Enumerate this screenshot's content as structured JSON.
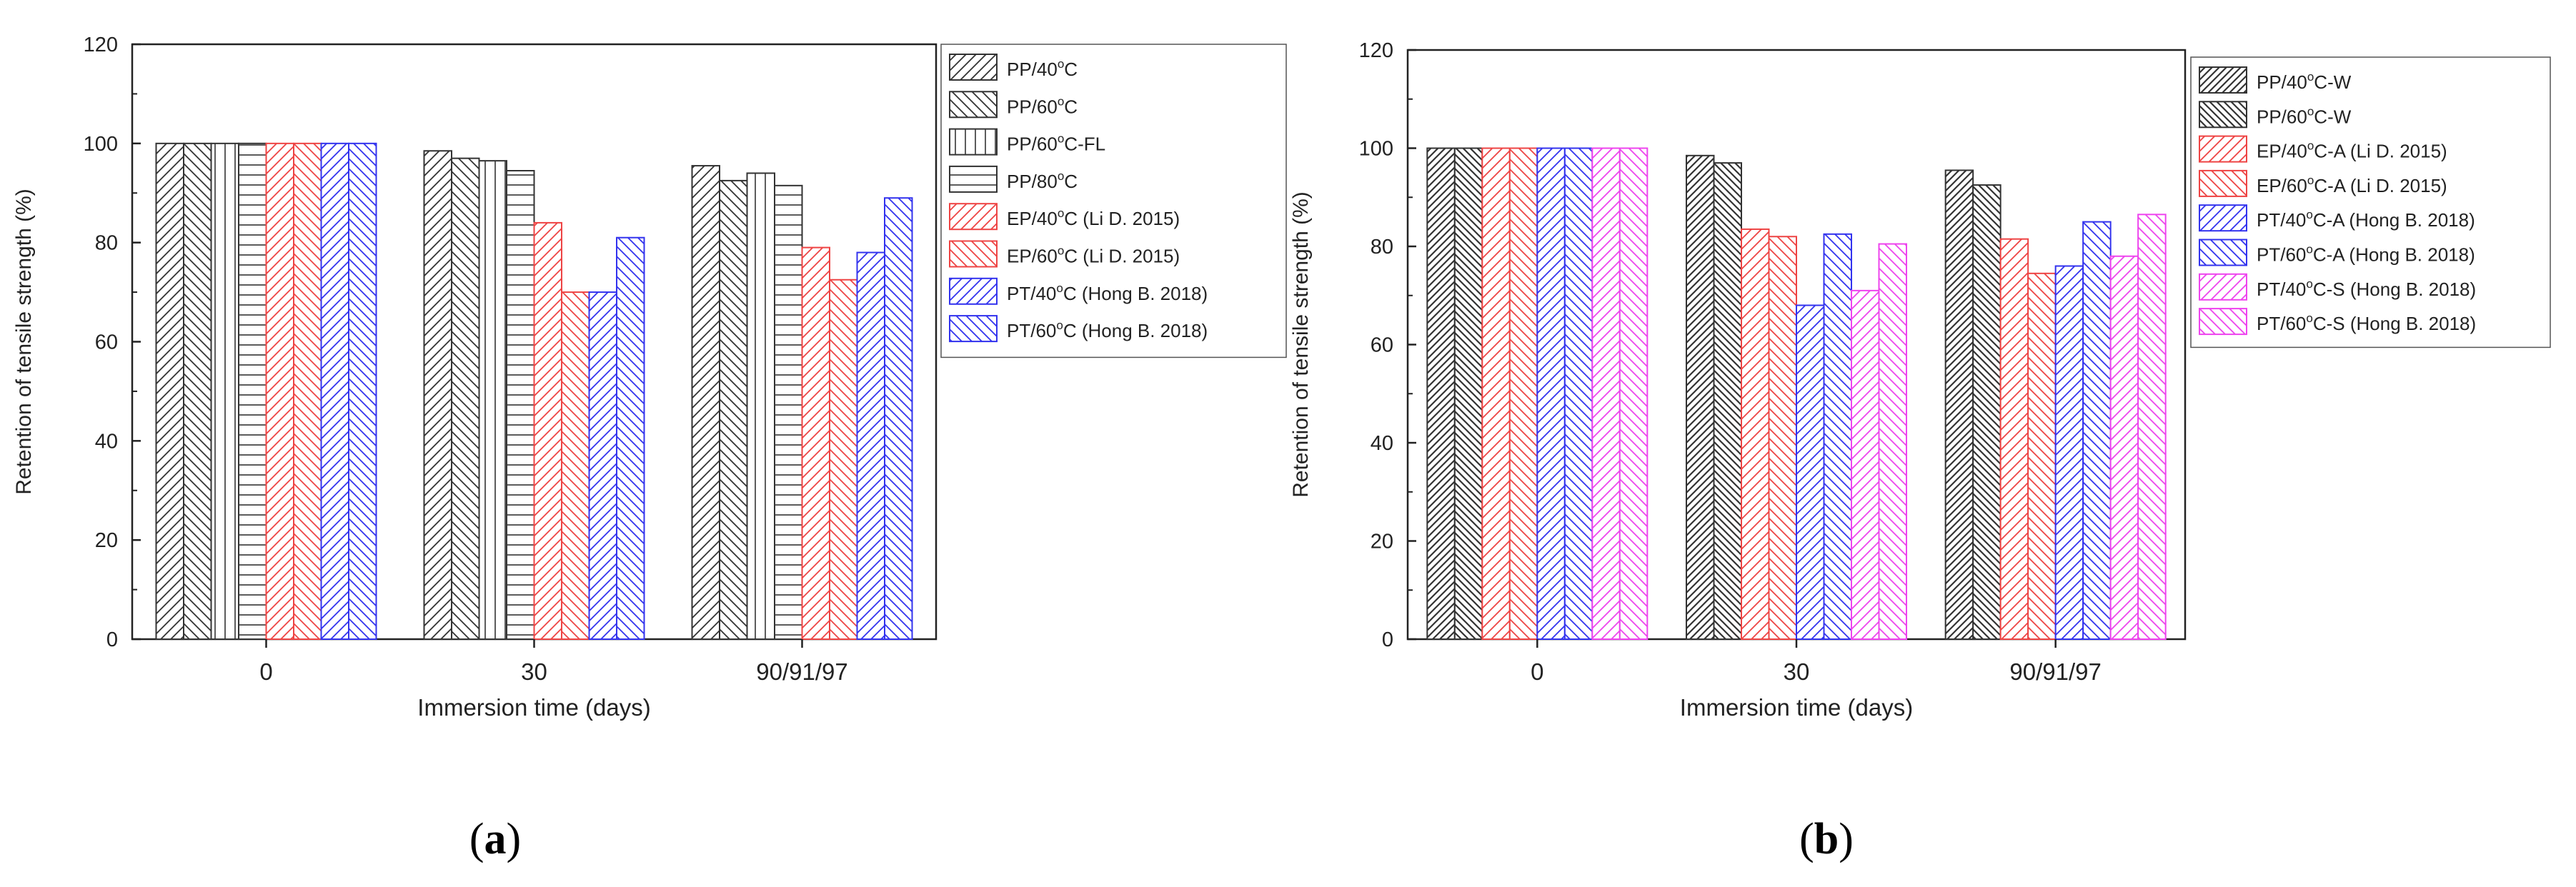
{
  "panels": [
    {
      "label": "(a)",
      "label_letter": "a",
      "chart_data": {
        "type": "bar",
        "title": "",
        "xlabel": "Immersion time (days)",
        "ylabel": "Retention of tensile strength (%)",
        "ylim": [
          0,
          120
        ],
        "yticks": [
          "0",
          "20",
          "40",
          "60",
          "80",
          "100",
          "120"
        ],
        "categories": [
          "0",
          "30",
          "90/91/97"
        ],
        "legend_position": "right-outside",
        "series": [
          {
            "name": "PP/40°C",
            "label_base": "PP/40",
            "label_suffix": "C",
            "color": "#333333",
            "pattern": "diag-left",
            "values": [
              100,
              98.5,
              95.5
            ]
          },
          {
            "name": "PP/60°C",
            "label_base": "PP/60",
            "label_suffix": "C",
            "color": "#333333",
            "pattern": "diag-right",
            "values": [
              100,
              97,
              92.5
            ]
          },
          {
            "name": "PP/60°C-FL",
            "label_base": "PP/60",
            "label_suffix": "C-FL",
            "color": "#333333",
            "pattern": "vertical",
            "values": [
              100,
              96.5,
              94
            ]
          },
          {
            "name": "PP/80°C",
            "label_base": "PP/80",
            "label_suffix": "C",
            "color": "#333333",
            "pattern": "horizontal",
            "values": [
              100,
              94.5,
              91.5
            ]
          },
          {
            "name": "EP/40°C (Li D. 2015)",
            "label_base": "EP/40",
            "label_suffix": "C (Li D. 2015)",
            "color": "#ee4444",
            "pattern": "diag-left",
            "values": [
              100,
              84,
              79
            ]
          },
          {
            "name": "EP/60°C (Li D. 2015)",
            "label_base": "EP/60",
            "label_suffix": "C (Li D. 2015)",
            "color": "#ee4444",
            "pattern": "diag-right",
            "values": [
              100,
              70,
              72.5
            ]
          },
          {
            "name": "PT/40°C (Hong B. 2018)",
            "label_base": "PT/40",
            "label_suffix": "C (Hong B. 2018)",
            "color": "#3333ee",
            "pattern": "diag-left",
            "values": [
              100,
              70,
              78
            ]
          },
          {
            "name": "PT/60°C (Hong B. 2018)",
            "label_base": "PT/60",
            "label_suffix": "C (Hong B. 2018)",
            "color": "#3333ee",
            "pattern": "diag-right",
            "values": [
              100,
              81,
              89
            ]
          }
        ]
      }
    },
    {
      "label": "(b)",
      "label_letter": "b",
      "chart_data": {
        "type": "bar",
        "title": "",
        "xlabel": "Immersion time (days)",
        "ylabel": "Retention of tensile strength (%)",
        "ylim": [
          0,
          120
        ],
        "yticks": [
          "0",
          "20",
          "40",
          "60",
          "80",
          "100",
          "120"
        ],
        "categories": [
          "0",
          "30",
          "90/91/97"
        ],
        "legend_position": "right-outside",
        "series": [
          {
            "name": "PP/40°C-W",
            "label_base": "PP/40",
            "label_suffix": "C-W",
            "color": "#333333",
            "pattern": "diag-left-dense",
            "values": [
              100,
              98.5,
              95.5
            ]
          },
          {
            "name": "PP/60°C-W",
            "label_base": "PP/60",
            "label_suffix": "C-W",
            "color": "#333333",
            "pattern": "diag-right-dense",
            "values": [
              100,
              97,
              92.5
            ]
          },
          {
            "name": "EP/40°C-A (Li D. 2015)",
            "label_base": "EP/40",
            "label_suffix": "C-A (Li D. 2015)",
            "color": "#ee4444",
            "pattern": "diag-left",
            "values": [
              100,
              83.5,
              81.5
            ]
          },
          {
            "name": "EP/60°C-A (Li D. 2015)",
            "label_base": "EP/60",
            "label_suffix": "C-A (Li D. 2015)",
            "color": "#ee4444",
            "pattern": "diag-right",
            "values": [
              100,
              82,
              74.5
            ]
          },
          {
            "name": "PT/40°C-A (Hong B. 2018)",
            "label_base": "PT/40",
            "label_suffix": "C-A (Hong B. 2018)",
            "color": "#3333ee",
            "pattern": "diag-left",
            "values": [
              100,
              68,
              76
            ]
          },
          {
            "name": "PT/60°C-A (Hong B. 2018)",
            "label_base": "PT/60",
            "label_suffix": "C-A (Hong B. 2018)",
            "color": "#3333ee",
            "pattern": "diag-right",
            "values": [
              100,
              82.5,
              85
            ]
          },
          {
            "name": "PT/40°C-S (Hong B. 2018)",
            "label_base": "PT/40",
            "label_suffix": "C-S (Hong B. 2018)",
            "color": "#ee44ee",
            "pattern": "diag-left",
            "values": [
              100,
              71,
              78
            ]
          },
          {
            "name": "PT/60°C-S (Hong B. 2018)",
            "label_base": "PT/60",
            "label_suffix": "C-S (Hong B. 2018)",
            "color": "#ee44ee",
            "pattern": "diag-right",
            "values": [
              100,
              80.5,
              86.5
            ]
          }
        ]
      }
    }
  ]
}
